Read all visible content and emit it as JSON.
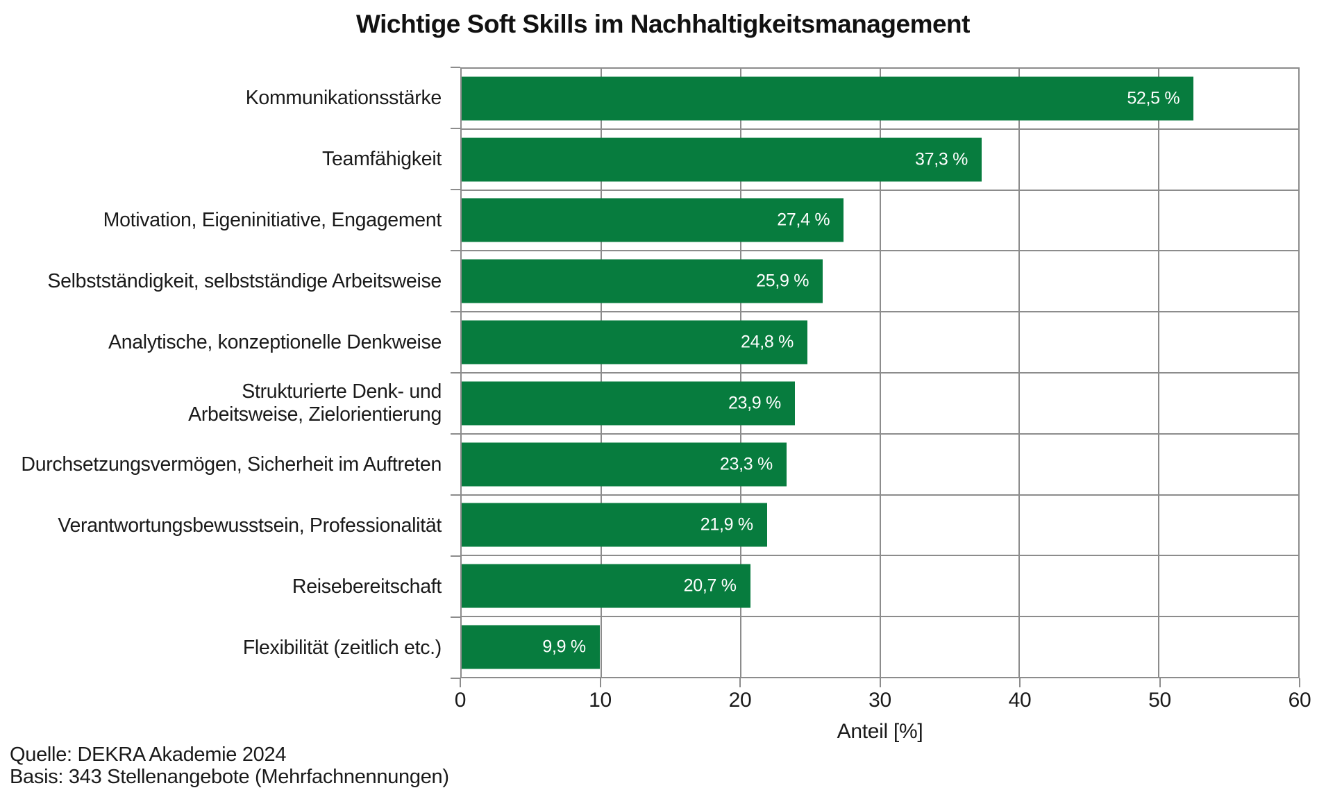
{
  "title": "Wichtige Soft Skills im Nachhaltigkeitsmanagement",
  "chart_data": {
    "type": "bar",
    "orientation": "horizontal",
    "title": "Wichtige Soft Skills im Nachhaltigkeitsmanagement",
    "categories": [
      "Kommunikationsstärke",
      "Teamfähigkeit",
      "Motivation, Eigeninitiative, Engagement",
      "Selbstständigkeit, selbstständige Arbeitsweise",
      "Analytische, konzeptionelle Denkweise",
      "Strukturierte Denk- und\nArbeitsweise, Zielorientierung",
      "Durchsetzungsvermögen, Sicherheit im Auftreten",
      "Verantwortungsbewusstsein, Professionalität",
      "Reisebereitschaft",
      "Flexibilität (zeitlich etc.)"
    ],
    "values": [
      52.5,
      37.3,
      27.4,
      25.9,
      24.8,
      23.9,
      23.3,
      21.9,
      20.7,
      9.9
    ],
    "value_labels": [
      "52,5 %",
      "37,3 %",
      "27,4 %",
      "25,9 %",
      "24,8 %",
      "23,9 %",
      "23,3 %",
      "21,9 %",
      "20,7 %",
      "9,9 %"
    ],
    "xlabel": "Anteil [%]",
    "xlim": [
      0,
      60
    ],
    "xticks": [
      "0",
      "10",
      "20",
      "30",
      "40",
      "50",
      "60"
    ],
    "grid": "on",
    "legend": "none",
    "bar_color": "#077c3e",
    "grid_color": "#8c8c8c",
    "value_label_color": "#ffffff"
  },
  "footer": {
    "line1": "Quelle: DEKRA Akademie 2024",
    "line2": "Basis: 343 Stellenangebote (Mehrfachnennungen)"
  }
}
